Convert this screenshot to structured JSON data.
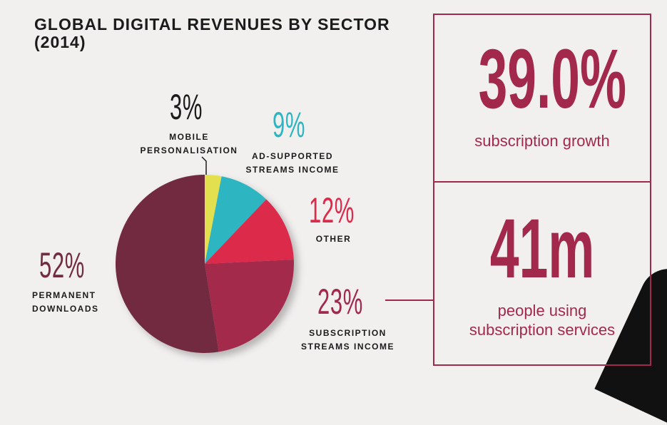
{
  "title": "GLOBAL DIGITAL REVENUES BY SECTOR (2014)",
  "chart_data": {
    "type": "pie",
    "title": "GLOBAL DIGITAL REVENUES BY SECTOR (2014)",
    "slices": [
      {
        "label": "MOBILE PERSONALISATION",
        "value": 3,
        "display": "3%",
        "color": "#e3e04f",
        "label_color": "#1b1b1b"
      },
      {
        "label": "AD-SUPPORTED STREAMS INCOME",
        "value": 9,
        "display": "9%",
        "color": "#2db5c2",
        "label_color": "#2db5c2"
      },
      {
        "label": "OTHER",
        "value": 12,
        "display": "12%",
        "color": "#dc2a4b",
        "label_color": "#dc2a4b"
      },
      {
        "label": "SUBSCRIPTION STREAMS INCOME",
        "value": 23,
        "display": "23%",
        "color": "#a3294c",
        "label_color": "#a3294c"
      },
      {
        "label": "PERMANENT DOWNLOADS",
        "value": 52,
        "display": "52%",
        "color": "#722c41",
        "label_color": "#722c41"
      }
    ]
  },
  "stats": [
    {
      "value": "39.0%",
      "caption": "subscription growth"
    },
    {
      "value": "41m",
      "caption_line1": "people using",
      "caption_line2": "subscription services"
    }
  ]
}
